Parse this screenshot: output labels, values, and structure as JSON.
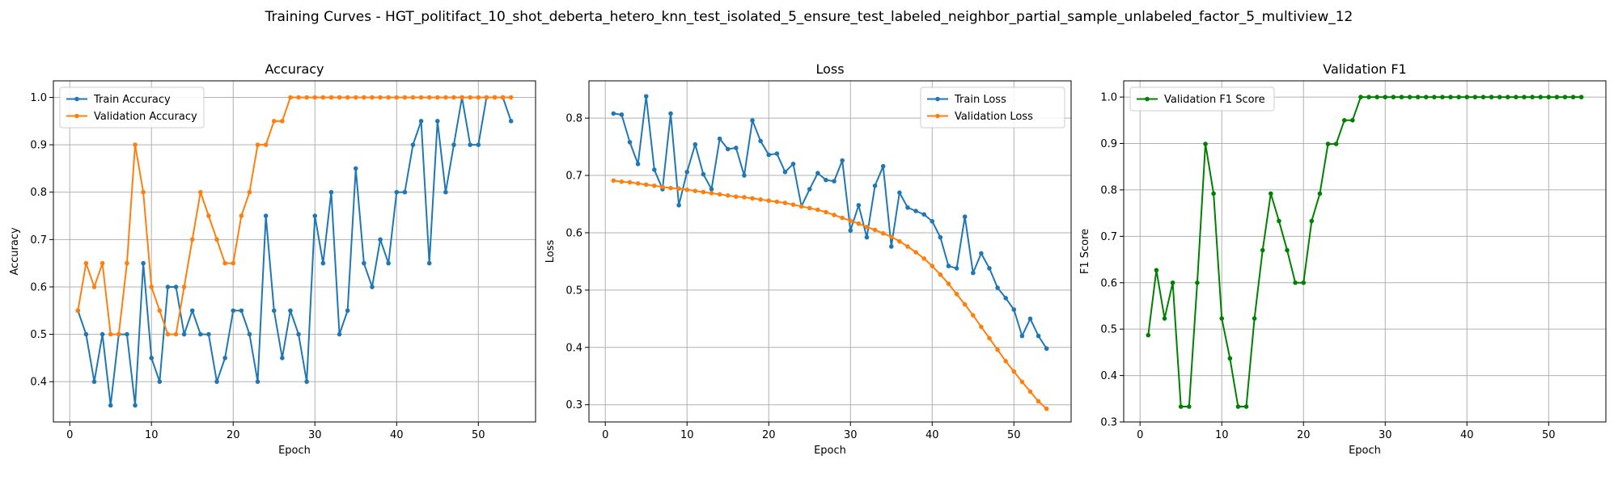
{
  "figure": {
    "suptitle": "Training Curves - HGT_politifact_10_shot_deberta_hetero_knn_test_isolated_5_ensure_test_labeled_neighbor_partial_sample_unlabeled_factor_5_multiview_12"
  },
  "colors": {
    "train": "#1f77b4",
    "validation": "#ff7f0e",
    "f1": "#008000",
    "grid": "#b0b0b0"
  },
  "chart_data": [
    {
      "type": "line",
      "title": "Accuracy",
      "xlabel": "Epoch",
      "ylabel": "Accuracy",
      "xlim": [
        -2,
        57
      ],
      "ylim": [
        0.315,
        1.035
      ],
      "xticks": [
        0,
        10,
        20,
        30,
        40,
        50
      ],
      "yticks": [
        0.4,
        0.5,
        0.6,
        0.7,
        0.8,
        0.9,
        1.0
      ],
      "ytick_labels": [
        "0.4",
        "0.5",
        "0.6",
        "0.7",
        "0.8",
        "0.9",
        "1.0"
      ],
      "grid": true,
      "legend_position": "upper-left",
      "x": [
        1,
        2,
        3,
        4,
        5,
        6,
        7,
        8,
        9,
        10,
        11,
        12,
        13,
        14,
        15,
        16,
        17,
        18,
        19,
        20,
        21,
        22,
        23,
        24,
        25,
        26,
        27,
        28,
        29,
        30,
        31,
        32,
        33,
        34,
        35,
        36,
        37,
        38,
        39,
        40,
        41,
        42,
        43,
        44,
        45,
        46,
        47,
        48,
        49,
        50,
        51,
        52,
        53,
        54
      ],
      "series": [
        {
          "name": "Train Accuracy",
          "color": "#1f77b4",
          "values": [
            0.55,
            0.5,
            0.4,
            0.5,
            0.35,
            0.5,
            0.5,
            0.35,
            0.65,
            0.45,
            0.4,
            0.6,
            0.6,
            0.5,
            0.55,
            0.5,
            0.5,
            0.4,
            0.45,
            0.55,
            0.55,
            0.5,
            0.4,
            0.75,
            0.55,
            0.45,
            0.55,
            0.5,
            0.4,
            0.75,
            0.65,
            0.8,
            0.5,
            0.55,
            0.85,
            0.65,
            0.6,
            0.7,
            0.65,
            0.8,
            0.8,
            0.9,
            0.95,
            0.65,
            0.95,
            0.8,
            0.9,
            1.0,
            0.9,
            0.9,
            1.0,
            1.0,
            1.0,
            0.95
          ]
        },
        {
          "name": "Validation Accuracy",
          "color": "#ff7f0e",
          "values": [
            0.55,
            0.65,
            0.6,
            0.65,
            0.5,
            0.5,
            0.65,
            0.9,
            0.8,
            0.6,
            0.55,
            0.5,
            0.5,
            0.6,
            0.7,
            0.8,
            0.75,
            0.7,
            0.65,
            0.65,
            0.75,
            0.8,
            0.9,
            0.9,
            0.95,
            0.95,
            1.0,
            1.0,
            1.0,
            1.0,
            1.0,
            1.0,
            1.0,
            1.0,
            1.0,
            1.0,
            1.0,
            1.0,
            1.0,
            1.0,
            1.0,
            1.0,
            1.0,
            1.0,
            1.0,
            1.0,
            1.0,
            1.0,
            1.0,
            1.0,
            1.0,
            1.0,
            1.0,
            1.0
          ]
        }
      ]
    },
    {
      "type": "line",
      "title": "Loss",
      "xlabel": "Epoch",
      "ylabel": "Loss",
      "xlim": [
        -2,
        57
      ],
      "ylim": [
        0.27,
        0.865
      ],
      "xticks": [
        0,
        10,
        20,
        30,
        40,
        50
      ],
      "yticks": [
        0.3,
        0.4,
        0.5,
        0.6,
        0.7,
        0.8
      ],
      "ytick_labels": [
        "0.3",
        "0.4",
        "0.5",
        "0.6",
        "0.7",
        "0.8"
      ],
      "grid": true,
      "legend_position": "upper-right",
      "x": [
        1,
        2,
        3,
        4,
        5,
        6,
        7,
        8,
        9,
        10,
        11,
        12,
        13,
        14,
        15,
        16,
        17,
        18,
        19,
        20,
        21,
        22,
        23,
        24,
        25,
        26,
        27,
        28,
        29,
        30,
        31,
        32,
        33,
        34,
        35,
        36,
        37,
        38,
        39,
        40,
        41,
        42,
        43,
        44,
        45,
        46,
        47,
        48,
        49,
        50,
        51,
        52,
        53,
        54
      ],
      "series": [
        {
          "name": "Train Loss",
          "color": "#1f77b4",
          "values": [
            0.808,
            0.806,
            0.758,
            0.72,
            0.838,
            0.71,
            0.676,
            0.808,
            0.648,
            0.706,
            0.754,
            0.702,
            0.676,
            0.764,
            0.746,
            0.748,
            0.7,
            0.796,
            0.76,
            0.736,
            0.738,
            0.706,
            0.72,
            0.646,
            0.676,
            0.704,
            0.692,
            0.69,
            0.726,
            0.604,
            0.648,
            0.592,
            0.682,
            0.716,
            0.576,
            0.67,
            0.644,
            0.638,
            0.632,
            0.62,
            0.592,
            0.542,
            0.538,
            0.628,
            0.53,
            0.564,
            0.538,
            0.504,
            0.486,
            0.466,
            0.42,
            0.45,
            0.42,
            0.398
          ]
        },
        {
          "name": "Validation Loss",
          "color": "#ff7f0e",
          "values": [
            0.691,
            0.689,
            0.688,
            0.686,
            0.684,
            0.682,
            0.68,
            0.678,
            0.677,
            0.675,
            0.673,
            0.671,
            0.669,
            0.667,
            0.665,
            0.663,
            0.662,
            0.66,
            0.658,
            0.656,
            0.654,
            0.652,
            0.649,
            0.646,
            0.643,
            0.64,
            0.636,
            0.631,
            0.626,
            0.621,
            0.616,
            0.61,
            0.605,
            0.599,
            0.593,
            0.585,
            0.576,
            0.566,
            0.555,
            0.542,
            0.527,
            0.511,
            0.493,
            0.475,
            0.456,
            0.436,
            0.416,
            0.396,
            0.376,
            0.358,
            0.34,
            0.323,
            0.306,
            0.293
          ]
        }
      ]
    },
    {
      "type": "line",
      "title": "Validation F1",
      "xlabel": "Epoch",
      "ylabel": "F1 Score",
      "xlim": [
        -2,
        57
      ],
      "ylim": [
        0.3,
        1.035
      ],
      "xticks": [
        0,
        10,
        20,
        30,
        40,
        50
      ],
      "yticks": [
        0.3,
        0.4,
        0.5,
        0.6,
        0.7,
        0.8,
        0.9,
        1.0
      ],
      "ytick_labels": [
        "0.3",
        "0.4",
        "0.5",
        "0.6",
        "0.7",
        "0.8",
        "0.9",
        "1.0"
      ],
      "grid": true,
      "legend_position": "upper-left",
      "x": [
        1,
        2,
        3,
        4,
        5,
        6,
        7,
        8,
        9,
        10,
        11,
        12,
        13,
        14,
        15,
        16,
        17,
        18,
        19,
        20,
        21,
        22,
        23,
        24,
        25,
        26,
        27,
        28,
        29,
        30,
        31,
        32,
        33,
        34,
        35,
        36,
        37,
        38,
        39,
        40,
        41,
        42,
        43,
        44,
        45,
        46,
        47,
        48,
        49,
        50,
        51,
        52,
        53,
        54
      ],
      "series": [
        {
          "name": "Validation F1 Score",
          "color": "#008000",
          "values": [
            0.487,
            0.627,
            0.523,
            0.6,
            0.333,
            0.333,
            0.6,
            0.899,
            0.792,
            0.523,
            0.437,
            0.333,
            0.333,
            0.523,
            0.67,
            0.792,
            0.733,
            0.67,
            0.6,
            0.6,
            0.733,
            0.792,
            0.899,
            0.899,
            0.95,
            0.95,
            1.0,
            1.0,
            1.0,
            1.0,
            1.0,
            1.0,
            1.0,
            1.0,
            1.0,
            1.0,
            1.0,
            1.0,
            1.0,
            1.0,
            1.0,
            1.0,
            1.0,
            1.0,
            1.0,
            1.0,
            1.0,
            1.0,
            1.0,
            1.0,
            1.0,
            1.0,
            1.0,
            1.0
          ]
        }
      ]
    }
  ]
}
